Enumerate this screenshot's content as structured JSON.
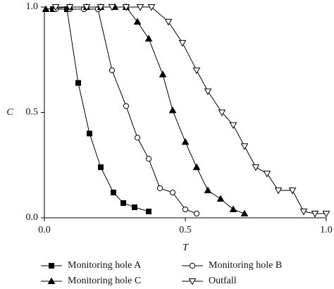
{
  "chart_data": {
    "type": "line",
    "x_label": "T",
    "y_label": "C",
    "xlim": [
      0,
      1.0
    ],
    "ylim": [
      0,
      1.0
    ],
    "xticks": [
      {
        "value": 0,
        "label": "0.0"
      },
      {
        "value": 0.5,
        "label": "0.5"
      },
      {
        "value": 1.0,
        "label": "1.0"
      }
    ],
    "yticks": [
      {
        "value": 0,
        "label": "0.0"
      },
      {
        "value": 0.5,
        "label": "0.5"
      },
      {
        "value": 1.0,
        "label": "1.0"
      }
    ],
    "legend": "bottom",
    "series": [
      {
        "name": "Monitoring hole A",
        "color": "#000000",
        "marker": "square",
        "filled": true,
        "x": [
          0.03,
          0.08,
          0.12,
          0.16,
          0.2,
          0.245,
          0.28,
          0.32,
          0.37
        ],
        "values": [
          0.99,
          0.99,
          0.64,
          0.4,
          0.24,
          0.12,
          0.07,
          0.05,
          0.03
        ]
      },
      {
        "name": "Monitoring hole B",
        "color": "#000000",
        "marker": "circle",
        "filled": false,
        "x": [
          0.04,
          0.09,
          0.14,
          0.19,
          0.24,
          0.29,
          0.33,
          0.37,
          0.41,
          0.455,
          0.5,
          0.54
        ],
        "values": [
          0.99,
          0.99,
          0.99,
          0.99,
          0.7,
          0.53,
          0.38,
          0.28,
          0.14,
          0.12,
          0.04,
          0.02
        ]
      },
      {
        "name": "Monitoring hole C",
        "color": "#000000",
        "marker": "triangle-up",
        "filled": true,
        "x": [
          0.005,
          0.09,
          0.15,
          0.2,
          0.25,
          0.29,
          0.33,
          0.37,
          0.42,
          0.455,
          0.5,
          0.54,
          0.58,
          0.625,
          0.67,
          0.71
        ],
        "values": [
          0.99,
          1.0,
          1.0,
          1.0,
          1.0,
          1.0,
          0.93,
          0.85,
          0.68,
          0.51,
          0.36,
          0.24,
          0.13,
          0.09,
          0.04,
          0.02
        ]
      },
      {
        "name": "Outfall",
        "color": "#000000",
        "marker": "triangle-down",
        "filled": false,
        "x": [
          0.04,
          0.09,
          0.15,
          0.2,
          0.24,
          0.29,
          0.34,
          0.38,
          0.44,
          0.49,
          0.54,
          0.58,
          0.63,
          0.67,
          0.71,
          0.75,
          0.79,
          0.83,
          0.88,
          0.92,
          0.96,
          1.0
        ],
        "values": [
          1.0,
          1.0,
          1.0,
          1.0,
          1.0,
          1.0,
          1.0,
          1.0,
          0.93,
          0.83,
          0.7,
          0.6,
          0.5,
          0.44,
          0.34,
          0.24,
          0.21,
          0.13,
          0.13,
          0.03,
          0.02,
          0.02
        ]
      }
    ]
  }
}
